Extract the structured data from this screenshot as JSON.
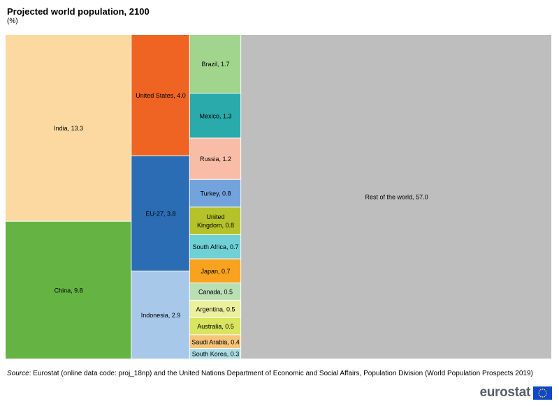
{
  "header": {
    "title": "Projected world population, 2100",
    "unit": "(%)"
  },
  "chart_data": {
    "type": "treemap",
    "title": "Projected world population, 2100",
    "unit": "(%)",
    "items": [
      {
        "name": "India",
        "label": "India, 13.3",
        "value": 13.3,
        "color": "#fcd9a0"
      },
      {
        "name": "China",
        "label": "China, 9.8",
        "value": 9.8,
        "color": "#64b343"
      },
      {
        "name": "United States",
        "label": "United States, 4.0",
        "value": 4.0,
        "color": "#ef6423"
      },
      {
        "name": "EU-27",
        "label": "EU-27, 3.8",
        "value": 3.8,
        "color": "#2a6db5"
      },
      {
        "name": "Indonesia",
        "label": "Indonesia, 2.9",
        "value": 2.9,
        "color": "#a7c8e8"
      },
      {
        "name": "Brazil",
        "label": "Brazil, 1.7",
        "value": 1.7,
        "color": "#a1d58d"
      },
      {
        "name": "Mexico",
        "label": "Mexico, 1.3",
        "value": 1.3,
        "color": "#2aaaaa"
      },
      {
        "name": "Russia",
        "label": "Russia, 1.2",
        "value": 1.2,
        "color": "#f9bda7"
      },
      {
        "name": "Turkey",
        "label": "Turkey, 0.8",
        "value": 0.8,
        "color": "#73a3dd"
      },
      {
        "name": "United Kingdom",
        "label": "United Kingdom, 0.8",
        "lines": [
          "United",
          "Kingdom, 0.8"
        ],
        "value": 0.8,
        "color": "#b6c22a"
      },
      {
        "name": "South Africa",
        "label": "South Africa, 0.7",
        "value": 0.7,
        "color": "#6fd1d6"
      },
      {
        "name": "Japan",
        "label": "Japan, 0.7",
        "value": 0.7,
        "color": "#f8a21f"
      },
      {
        "name": "Canada",
        "label": "Canada, 0.5",
        "value": 0.5,
        "color": "#b9e0b5"
      },
      {
        "name": "Argentina",
        "label": "Argentina, 0.5",
        "value": 0.5,
        "color": "#eaf09c"
      },
      {
        "name": "Australia",
        "label": "Australia, 0.5",
        "value": 0.5,
        "color": "#d9e45f"
      },
      {
        "name": "Saudi Arabia",
        "label": "Saudi Arabia, 0.4",
        "value": 0.4,
        "color": "#f7c47a"
      },
      {
        "name": "South Korea",
        "label": "South Korea, 0.3",
        "value": 0.3,
        "color": "#a9dde3"
      },
      {
        "name": "Rest of the world",
        "label": "Rest of the world, 57.0",
        "value": 57.0,
        "color": "#bebebe"
      }
    ]
  },
  "footer": {
    "source_label": "Source",
    "source_text": ": Eurostat (online data code: proj_18np) and the United Nations Department of Economic and Social Affairs, Population Division (World Population Prospects 2019)",
    "logo_text": "eurostat"
  }
}
